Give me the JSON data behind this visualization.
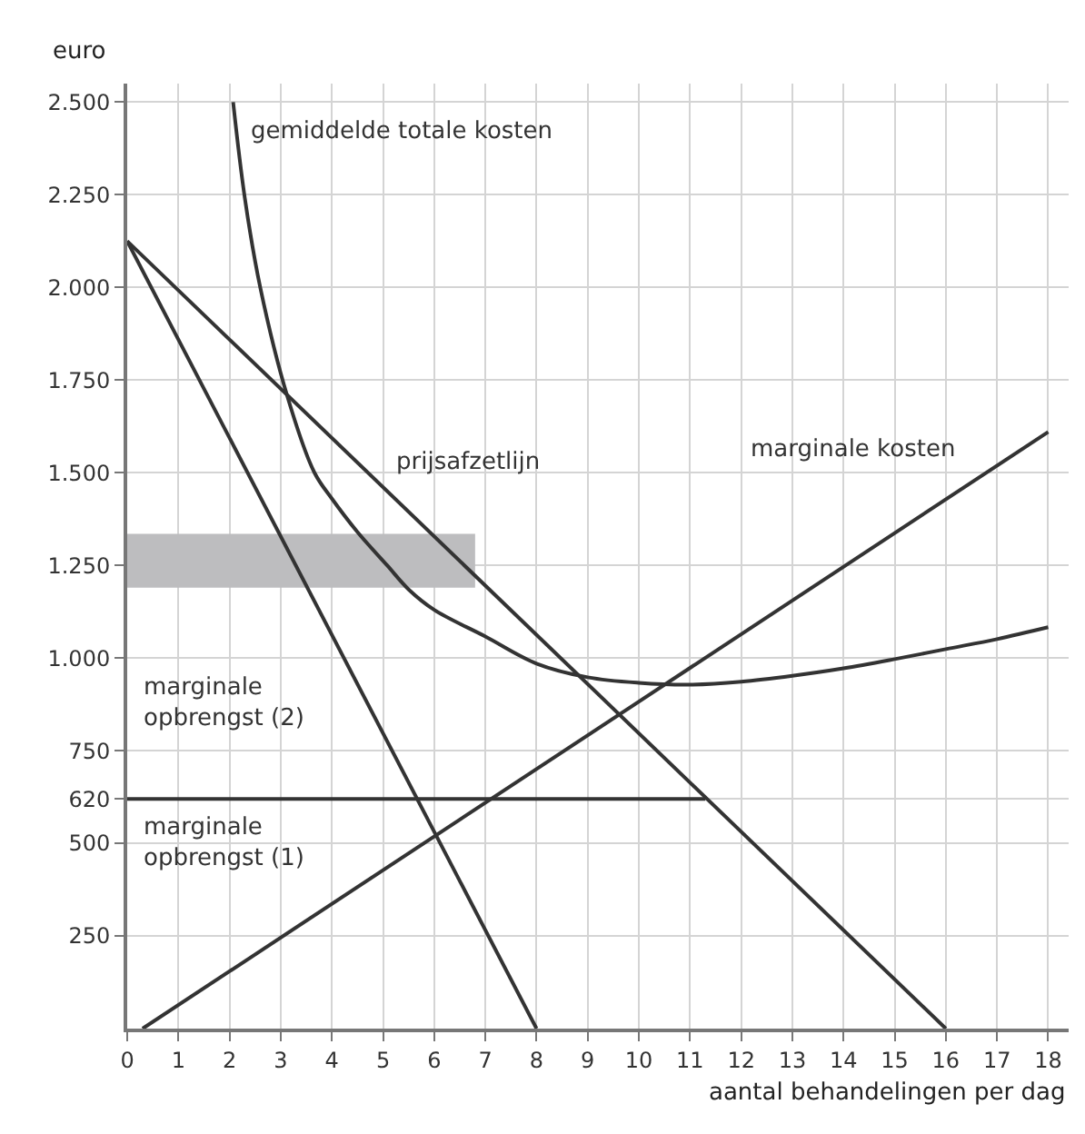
{
  "chart_data": {
    "type": "line",
    "xlabel": "aantal behandelingen per dag",
    "ylabel": "euro",
    "xlim": [
      0,
      18.4
    ],
    "ylim": [
      0,
      2550
    ],
    "xticks": [
      {
        "value": 0,
        "label": "0"
      },
      1,
      2,
      3,
      4,
      5,
      6,
      7,
      8,
      9,
      10,
      11,
      12,
      13,
      14,
      15,
      16,
      17,
      18
    ],
    "yticks": [
      250,
      500,
      620,
      750,
      {
        "value": 1000,
        "label": "1.000"
      },
      {
        "value": 1250,
        "label": "1.250"
      },
      {
        "value": 1500,
        "label": "1.500"
      },
      {
        "value": 1750,
        "label": "1.750"
      },
      {
        "value": 2000,
        "label": "2.000"
      },
      {
        "value": 2250,
        "label": "2.250"
      },
      {
        "value": 2500,
        "label": "2.500"
      }
    ],
    "grid": true,
    "legend": false,
    "marker": "none",
    "line_style": "solid",
    "series": [
      {
        "type": "area",
        "color": "#bdbdbf",
        "x": [
          0,
          6.8
        ],
        "values": [
          null,
          null
        ],
        "lower": [
          1190,
          1190
        ],
        "upper": [
          1335,
          1335
        ]
      },
      {
        "name": "prijsafzetlijn",
        "color": "#333333",
        "x": [
          0,
          16
        ],
        "values": [
          2125,
          0
        ]
      },
      {
        "name": "marginale\nopbrengst (2)",
        "color": "#333333",
        "x": [
          0,
          8
        ],
        "values": [
          2125,
          0
        ]
      },
      {
        "name": "marginale kosten",
        "color": "#333333",
        "x": [
          0.3,
          18
        ],
        "values": [
          0,
          1610
        ]
      },
      {
        "name": "marginale\nopbrengst (1)",
        "color": "#333333",
        "x": [
          0,
          11.3
        ],
        "values": [
          620,
          620
        ]
      },
      {
        "name": "gemiddelde totale kosten",
        "color": "#333333",
        "x": [
          2.07,
          2.3,
          2.6,
          3.13,
          3.66,
          4,
          4.5,
          5.08,
          5.5,
          6,
          7,
          8,
          9,
          10,
          11,
          12,
          13,
          14,
          15,
          16,
          17,
          18
        ],
        "values": [
          2500,
          2240,
          2000,
          1706,
          1500,
          1430,
          1340,
          1250,
          1185,
          1130,
          1058,
          985,
          948,
          933,
          928,
          936,
          952,
          972,
          997,
          1024,
          1051,
          1083
        ]
      }
    ]
  }
}
